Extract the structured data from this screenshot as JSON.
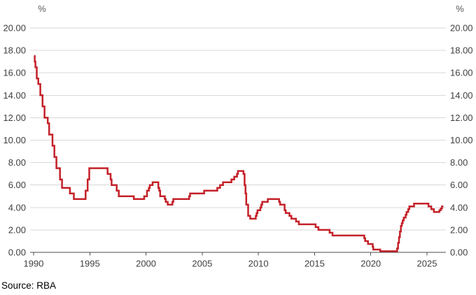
{
  "header": {
    "unit_left": "%",
    "unit_right": "%"
  },
  "footer": {
    "source": "Source: RBA"
  },
  "chart_data": {
    "type": "line",
    "title": "",
    "ylabel_unit": "%",
    "source": "Source: RBA",
    "step_line": true,
    "grid": true,
    "legend": "none",
    "xlim": [
      1989.69,
      2026.68
    ],
    "ylim": [
      0,
      20
    ],
    "x_ticks": [
      {
        "year": 1990,
        "label": "1990"
      },
      {
        "year": 1995,
        "label": "1995"
      },
      {
        "year": 2000,
        "label": "2000"
      },
      {
        "year": 2005,
        "label": "2005"
      },
      {
        "year": 2010,
        "label": "2010"
      },
      {
        "year": 2015,
        "label": "2015"
      },
      {
        "year": 2020,
        "label": "2020"
      },
      {
        "year": 2025,
        "label": "2025"
      }
    ],
    "y_ticks": [
      {
        "value": 0,
        "label": "0.00"
      },
      {
        "value": 2,
        "label": "2.00"
      },
      {
        "value": 4,
        "label": "4.00"
      },
      {
        "value": 6,
        "label": "6.00"
      },
      {
        "value": 8,
        "label": "8.00"
      },
      {
        "value": 10,
        "label": "10.00"
      },
      {
        "value": 12,
        "label": "12.00"
      },
      {
        "value": 14,
        "label": "14.00"
      },
      {
        "value": 16,
        "label": "16.00"
      },
      {
        "value": 18,
        "label": "18.00"
      },
      {
        "value": 20,
        "label": "20.00"
      }
    ],
    "colors": {
      "line": "#c42129",
      "grid": "#d9d9d9",
      "axis": "#4d4d4d",
      "tick_text": "#404040",
      "unit_text": "#595959",
      "source_text": "#000000",
      "background": "#ffffff"
    },
    "series": [
      {
        "points": [
          [
            1990.04,
            17.5
          ],
          [
            1990.1,
            17.0
          ],
          [
            1990.16,
            16.5
          ],
          [
            1990.28,
            15.5
          ],
          [
            1990.42,
            15.0
          ],
          [
            1990.6,
            14.0
          ],
          [
            1990.8,
            13.0
          ],
          [
            1990.97,
            12.0
          ],
          [
            1991.26,
            11.5
          ],
          [
            1991.38,
            10.5
          ],
          [
            1991.68,
            9.5
          ],
          [
            1991.85,
            8.5
          ],
          [
            1992.03,
            7.5
          ],
          [
            1992.35,
            6.5
          ],
          [
            1992.53,
            5.75
          ],
          [
            1993.23,
            5.25
          ],
          [
            1993.58,
            4.75
          ],
          [
            1994.63,
            5.5
          ],
          [
            1994.81,
            6.5
          ],
          [
            1994.95,
            7.5
          ],
          [
            1996.58,
            7.0
          ],
          [
            1996.85,
            6.5
          ],
          [
            1996.94,
            6.0
          ],
          [
            1997.39,
            5.5
          ],
          [
            1997.58,
            5.0
          ],
          [
            1998.92,
            4.75
          ],
          [
            1999.84,
            5.0
          ],
          [
            2000.09,
            5.5
          ],
          [
            2000.26,
            5.75
          ],
          [
            2000.34,
            6.0
          ],
          [
            2000.59,
            6.25
          ],
          [
            2001.1,
            5.75
          ],
          [
            2001.18,
            5.5
          ],
          [
            2001.26,
            5.0
          ],
          [
            2001.68,
            4.75
          ],
          [
            2001.76,
            4.5
          ],
          [
            2001.93,
            4.25
          ],
          [
            2002.35,
            4.5
          ],
          [
            2002.43,
            4.75
          ],
          [
            2003.84,
            5.0
          ],
          [
            2003.92,
            5.25
          ],
          [
            2005.17,
            5.5
          ],
          [
            2006.34,
            5.75
          ],
          [
            2006.59,
            6.0
          ],
          [
            2006.85,
            6.25
          ],
          [
            2007.6,
            6.5
          ],
          [
            2007.85,
            6.75
          ],
          [
            2008.1,
            7.0
          ],
          [
            2008.18,
            7.25
          ],
          [
            2008.67,
            7.0
          ],
          [
            2008.77,
            6.0
          ],
          [
            2008.85,
            5.25
          ],
          [
            2008.92,
            4.25
          ],
          [
            2009.09,
            3.25
          ],
          [
            2009.27,
            3.0
          ],
          [
            2009.77,
            3.25
          ],
          [
            2009.84,
            3.5
          ],
          [
            2009.92,
            3.75
          ],
          [
            2010.17,
            4.0
          ],
          [
            2010.26,
            4.25
          ],
          [
            2010.34,
            4.5
          ],
          [
            2010.84,
            4.75
          ],
          [
            2011.84,
            4.5
          ],
          [
            2011.93,
            4.25
          ],
          [
            2012.33,
            3.75
          ],
          [
            2012.43,
            3.5
          ],
          [
            2012.76,
            3.25
          ],
          [
            2012.93,
            3.0
          ],
          [
            2013.35,
            2.75
          ],
          [
            2013.6,
            2.5
          ],
          [
            2015.09,
            2.25
          ],
          [
            2015.34,
            2.0
          ],
          [
            2016.34,
            1.75
          ],
          [
            2016.59,
            1.5
          ],
          [
            2019.42,
            1.25
          ],
          [
            2019.5,
            1.0
          ],
          [
            2019.75,
            0.75
          ],
          [
            2020.17,
            0.5
          ],
          [
            2020.22,
            0.25
          ],
          [
            2020.84,
            0.1
          ],
          [
            2022.34,
            0.35
          ],
          [
            2022.43,
            0.85
          ],
          [
            2022.51,
            1.35
          ],
          [
            2022.59,
            1.85
          ],
          [
            2022.68,
            2.35
          ],
          [
            2022.76,
            2.6
          ],
          [
            2022.84,
            2.85
          ],
          [
            2022.93,
            3.1
          ],
          [
            2023.1,
            3.35
          ],
          [
            2023.18,
            3.6
          ],
          [
            2023.33,
            3.85
          ],
          [
            2023.43,
            4.1
          ],
          [
            2023.85,
            4.35
          ],
          [
            2025.13,
            4.1
          ],
          [
            2025.38,
            3.85
          ],
          [
            2025.61,
            3.6
          ],
          [
            2026.1,
            3.75
          ],
          [
            2026.22,
            3.9
          ],
          [
            2026.33,
            4.1
          ]
        ],
        "x_end": 2026.45
      }
    ]
  }
}
